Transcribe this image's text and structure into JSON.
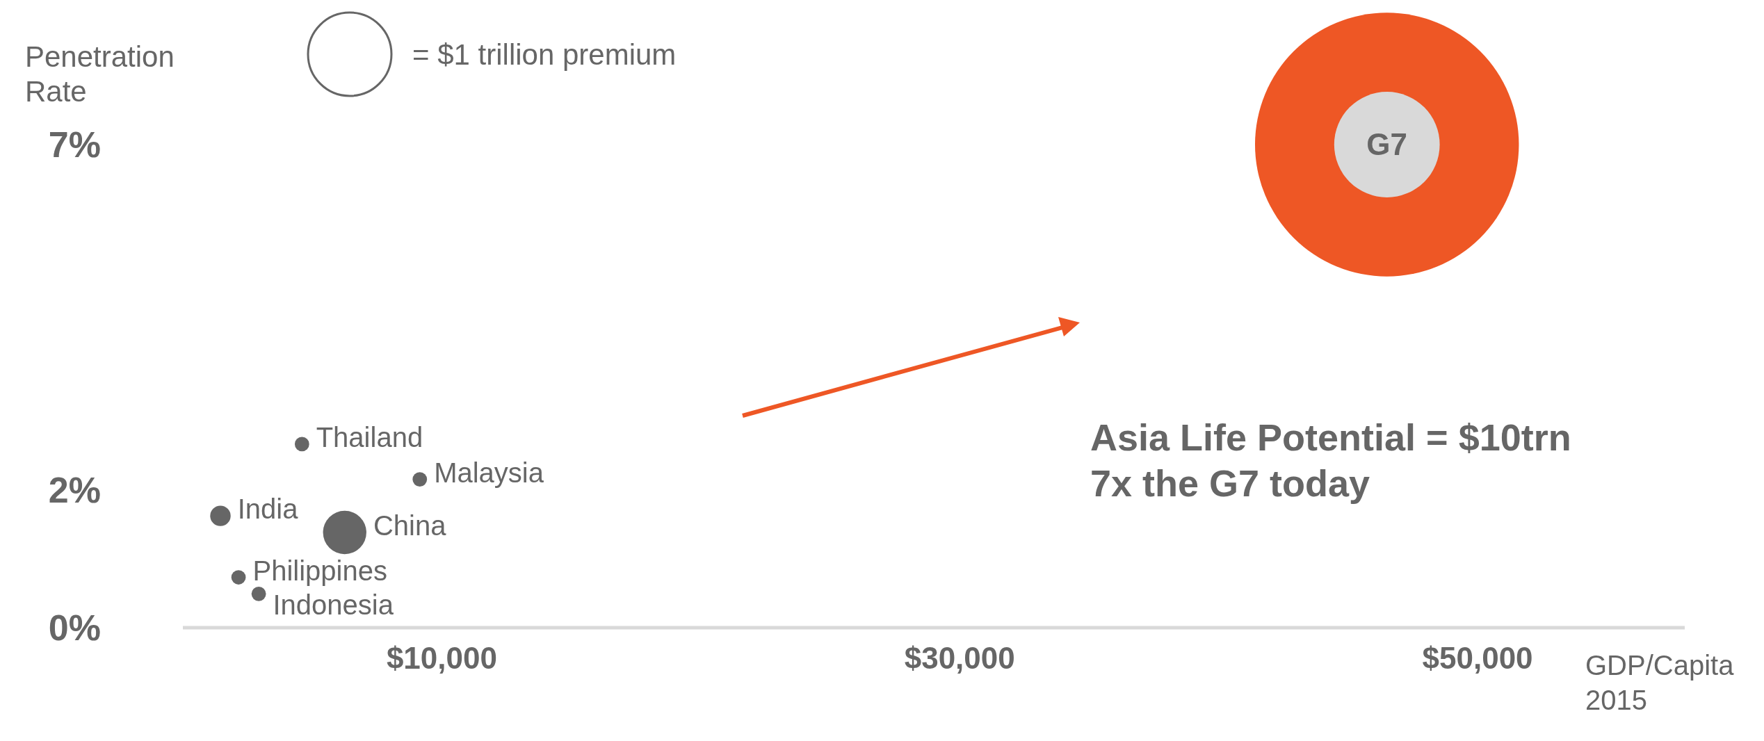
{
  "chart_data": {
    "type": "bubble",
    "ylabel": "Penetration\nRate",
    "xlabel": "GDP/Capita\n2015",
    "xlim": [
      0,
      58000
    ],
    "xticks": [
      {
        "value": 10000,
        "label": "$10,000"
      },
      {
        "value": 30000,
        "label": "$30,000"
      },
      {
        "value": 50000,
        "label": "$50,000"
      }
    ],
    "ylim": [
      0,
      7
    ],
    "yticks": [
      {
        "value": 0,
        "label": "0%"
      },
      {
        "value": 2,
        "label": "2%"
      },
      {
        "value": 7,
        "label": "7%"
      }
    ],
    "size_legend": [
      {
        "value": 1,
        "label": "= $1 trillion premium"
      }
    ],
    "series": [
      {
        "color": "#ee5725",
        "x": [
          46500
        ],
        "values": [
          7
        ],
        "sizes": [
          10
        ]
      },
      {
        "name": "G7",
        "color": "#d9d9d9",
        "x": [
          46500
        ],
        "values": [
          7
        ],
        "sizes": [
          1.6
        ]
      },
      {
        "name": "Thailand",
        "color": "#666666",
        "x": [
          4600
        ],
        "values": [
          2.66
        ],
        "sizes": [
          0.03
        ]
      },
      {
        "name": "Malaysia",
        "color": "#666666",
        "x": [
          9150
        ],
        "values": [
          2.15
        ],
        "sizes": [
          0.03
        ]
      },
      {
        "name": "India",
        "color": "#666666",
        "x": [
          1450
        ],
        "values": [
          1.62
        ],
        "sizes": [
          0.06
        ]
      },
      {
        "name": "China",
        "color": "#666666",
        "x": [
          6250
        ],
        "values": [
          1.38
        ],
        "sizes": [
          0.27
        ]
      },
      {
        "name": "Philippines",
        "color": "#666666",
        "x": [
          2150
        ],
        "values": [
          0.73
        ],
        "sizes": [
          0.03
        ]
      },
      {
        "name": "Indonesia",
        "color": "#666666",
        "x": [
          2930
        ],
        "values": [
          0.49
        ],
        "sizes": [
          0.03
        ]
      }
    ],
    "annotations": [
      "Asia Life Potential = $10trn",
      "7x the G7 today"
    ],
    "grid": false,
    "legend": false
  }
}
